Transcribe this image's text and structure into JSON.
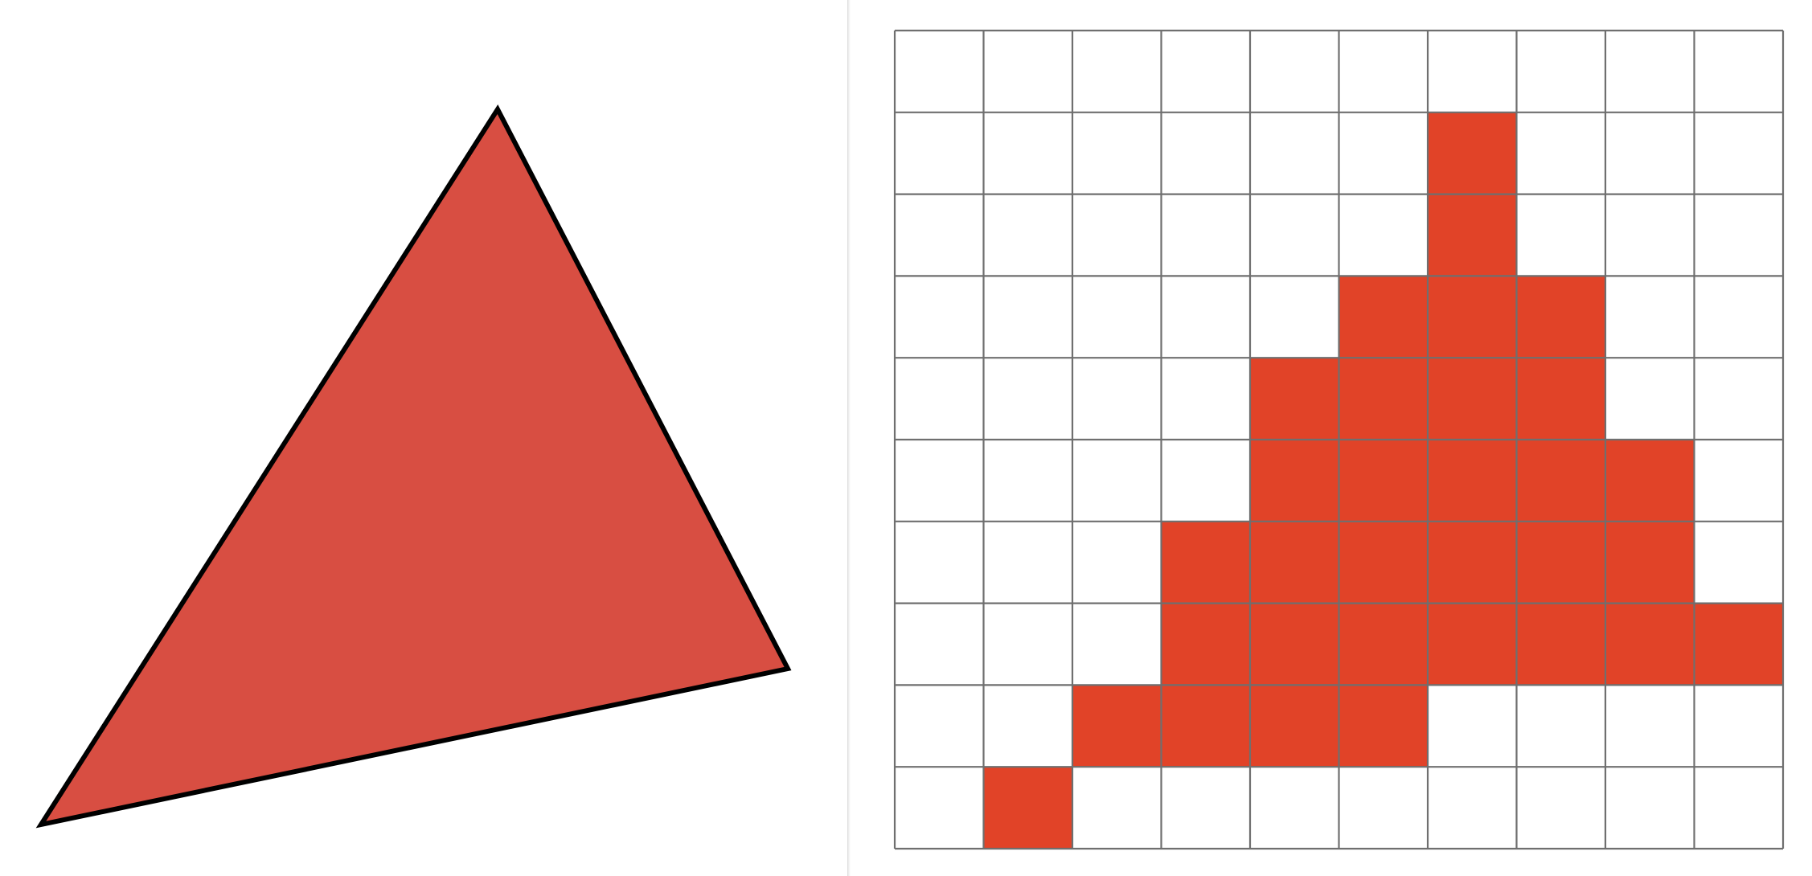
{
  "triangle": {
    "fill": "#D84E42",
    "stroke": "#000000"
  },
  "grid": {
    "rows": 10,
    "cols": 10,
    "line_color": "#6F6F6F",
    "fill_color": "#E14328",
    "filled_cells": [
      [
        1,
        6
      ],
      [
        2,
        6
      ],
      [
        3,
        5
      ],
      [
        3,
        6
      ],
      [
        3,
        7
      ],
      [
        4,
        4
      ],
      [
        4,
        5
      ],
      [
        4,
        6
      ],
      [
        4,
        7
      ],
      [
        5,
        4
      ],
      [
        5,
        5
      ],
      [
        5,
        6
      ],
      [
        5,
        7
      ],
      [
        5,
        8
      ],
      [
        6,
        3
      ],
      [
        6,
        4
      ],
      [
        6,
        5
      ],
      [
        6,
        6
      ],
      [
        6,
        7
      ],
      [
        6,
        8
      ],
      [
        7,
        3
      ],
      [
        7,
        4
      ],
      [
        7,
        5
      ],
      [
        7,
        6
      ],
      [
        7,
        7
      ],
      [
        7,
        8
      ],
      [
        7,
        9
      ],
      [
        8,
        2
      ],
      [
        8,
        3
      ],
      [
        8,
        4
      ],
      [
        8,
        5
      ],
      [
        9,
        1
      ]
    ]
  }
}
